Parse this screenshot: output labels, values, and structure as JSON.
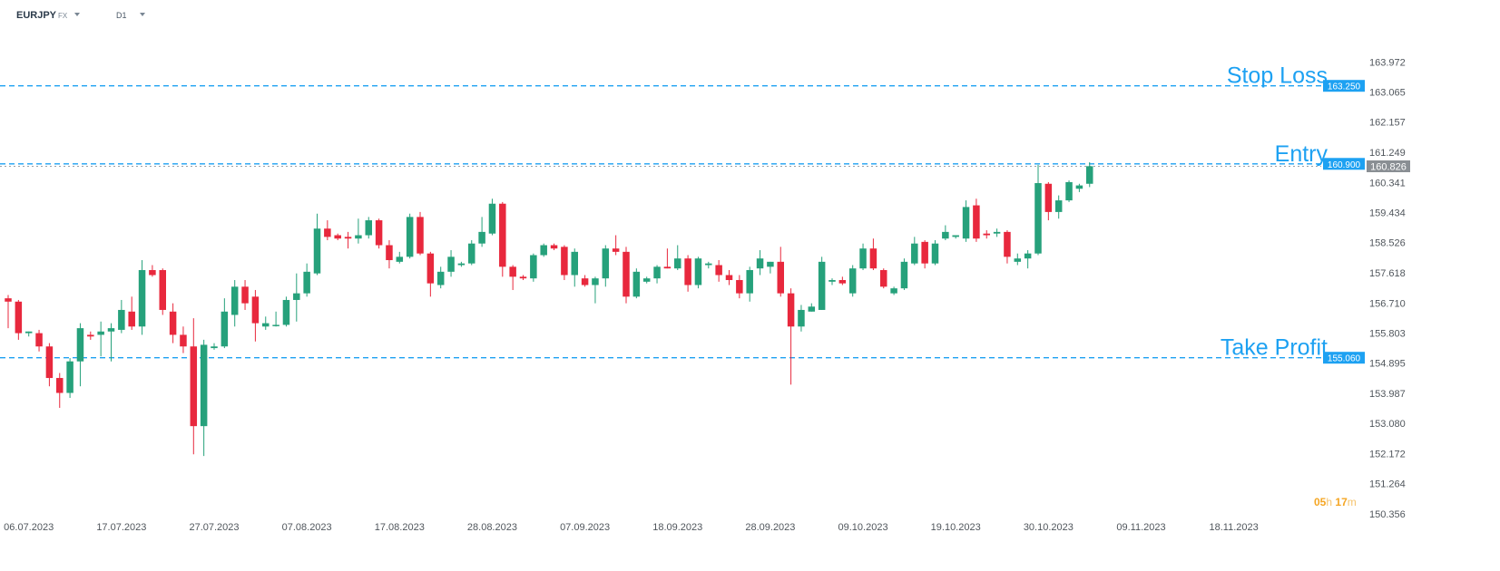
{
  "header": {
    "symbol": "EURJPY",
    "symbol_type": "FX",
    "timeframe": "D1"
  },
  "countdown": {
    "hours": "05",
    "hours_unit": "h",
    "minutes": "17",
    "minutes_unit": "m"
  },
  "colors": {
    "up": "#26a17b",
    "down": "#e8283d",
    "level_line": "#1da1f2",
    "level_text": "#1da1f2",
    "last_price_bg": "#8a8f94",
    "axis_text": "#50565c"
  },
  "chart_data": {
    "type": "candlestick",
    "symbol": "EURJPY",
    "timeframe": "D1",
    "ylim": [
      150.356,
      164.88
    ],
    "y_ticks": [
      "163.972",
      "163.065",
      "162.157",
      "161.249",
      "160.341",
      "159.434",
      "158.526",
      "157.618",
      "156.710",
      "155.803",
      "154.895",
      "153.987",
      "153.080",
      "152.172",
      "151.264",
      "150.356"
    ],
    "x_ticks": [
      {
        "label": "06.07.2023",
        "index": 2
      },
      {
        "label": "17.07.2023",
        "index": 11
      },
      {
        "label": "27.07.2023",
        "index": 20
      },
      {
        "label": "07.08.2023",
        "index": 29
      },
      {
        "label": "17.08.2023",
        "index": 38
      },
      {
        "label": "28.08.2023",
        "index": 47
      },
      {
        "label": "07.09.2023",
        "index": 56
      },
      {
        "label": "18.09.2023",
        "index": 65
      },
      {
        "label": "28.09.2023",
        "index": 74
      },
      {
        "label": "09.10.2023",
        "index": 83
      },
      {
        "label": "19.10.2023",
        "index": 92
      },
      {
        "label": "30.10.2023",
        "index": 101
      },
      {
        "label": "09.11.2023",
        "index": 110
      },
      {
        "label": "18.11.2023",
        "index": 119
      }
    ],
    "levels": [
      {
        "name": "Stop Loss",
        "value": 163.25,
        "label": "163.250"
      },
      {
        "name": "Entry",
        "value": 160.9,
        "label": "160.900"
      },
      {
        "name": "Take Profit",
        "value": 155.06,
        "label": "155.060"
      }
    ],
    "last_price": {
      "value": 160.826,
      "label": "160.826"
    },
    "ohlc": [
      [
        156.85,
        156.95,
        155.95,
        156.75
      ],
      [
        156.75,
        156.8,
        155.6,
        155.8
      ],
      [
        155.8,
        155.85,
        155.7,
        155.85
      ],
      [
        155.8,
        155.9,
        155.25,
        155.4
      ],
      [
        155.4,
        155.5,
        154.2,
        154.45
      ],
      [
        154.45,
        154.6,
        153.55,
        154.0
      ],
      [
        154.0,
        155.05,
        153.85,
        154.95
      ],
      [
        154.95,
        156.1,
        154.2,
        155.95
      ],
      [
        155.75,
        155.85,
        155.6,
        155.7
      ],
      [
        155.75,
        156.15,
        155.1,
        155.85
      ],
      [
        155.85,
        156.1,
        154.95,
        155.95
      ],
      [
        155.9,
        156.8,
        155.8,
        156.5
      ],
      [
        156.45,
        156.9,
        155.9,
        156.0
      ],
      [
        156.0,
        158.0,
        155.75,
        157.7
      ],
      [
        157.7,
        157.85,
        157.5,
        157.55
      ],
      [
        157.7,
        157.75,
        156.35,
        156.5
      ],
      [
        156.45,
        156.7,
        155.5,
        155.75
      ],
      [
        155.75,
        156.0,
        155.2,
        155.4
      ],
      [
        155.4,
        156.25,
        152.15,
        153.0
      ],
      [
        153.0,
        155.6,
        152.1,
        155.45
      ],
      [
        155.35,
        155.5,
        155.3,
        155.4
      ],
      [
        155.4,
        156.85,
        155.35,
        156.45
      ],
      [
        156.35,
        157.4,
        156.0,
        157.2
      ],
      [
        157.2,
        157.4,
        156.5,
        156.7
      ],
      [
        156.9,
        157.1,
        155.55,
        156.1
      ],
      [
        156.0,
        156.3,
        155.9,
        156.1
      ],
      [
        156.05,
        156.45,
        156.0,
        156.05
      ],
      [
        156.05,
        156.9,
        156.0,
        156.8
      ],
      [
        156.8,
        157.6,
        156.15,
        157.0
      ],
      [
        157.0,
        157.9,
        156.9,
        157.65
      ],
      [
        157.6,
        159.4,
        157.55,
        158.95
      ],
      [
        158.95,
        159.2,
        158.6,
        158.7
      ],
      [
        158.75,
        158.8,
        158.6,
        158.65
      ],
      [
        158.7,
        158.85,
        158.35,
        158.65
      ],
      [
        158.65,
        159.25,
        158.5,
        158.75
      ],
      [
        158.75,
        159.3,
        158.65,
        159.2
      ],
      [
        159.2,
        159.25,
        158.35,
        158.45
      ],
      [
        158.45,
        158.6,
        157.75,
        158.0
      ],
      [
        157.95,
        158.25,
        157.9,
        158.1
      ],
      [
        158.1,
        159.4,
        158.05,
        159.3
      ],
      [
        159.3,
        159.45,
        158.15,
        158.2
      ],
      [
        158.2,
        158.25,
        156.9,
        157.3
      ],
      [
        157.25,
        157.8,
        157.15,
        157.65
      ],
      [
        157.65,
        158.3,
        157.5,
        158.1
      ],
      [
        157.85,
        157.95,
        157.8,
        157.9
      ],
      [
        157.9,
        158.6,
        157.85,
        158.5
      ],
      [
        158.5,
        159.3,
        158.4,
        158.85
      ],
      [
        158.8,
        159.85,
        158.75,
        159.7
      ],
      [
        159.7,
        159.75,
        157.5,
        157.8
      ],
      [
        157.8,
        157.85,
        157.1,
        157.5
      ],
      [
        157.5,
        157.55,
        157.4,
        157.45
      ],
      [
        157.45,
        158.2,
        157.35,
        158.15
      ],
      [
        158.15,
        158.5,
        158.1,
        158.45
      ],
      [
        158.45,
        158.5,
        158.3,
        158.35
      ],
      [
        158.4,
        158.45,
        157.4,
        157.55
      ],
      [
        157.55,
        158.35,
        157.2,
        158.25
      ],
      [
        157.45,
        157.55,
        157.2,
        157.25
      ],
      [
        157.25,
        157.5,
        156.7,
        157.45
      ],
      [
        157.45,
        158.45,
        157.2,
        158.35
      ],
      [
        158.35,
        158.75,
        158.15,
        158.25
      ],
      [
        158.25,
        158.4,
        156.7,
        156.9
      ],
      [
        156.9,
        157.75,
        156.85,
        157.65
      ],
      [
        157.35,
        157.5,
        157.3,
        157.45
      ],
      [
        157.45,
        157.85,
        157.3,
        157.8
      ],
      [
        157.8,
        158.35,
        157.75,
        157.75
      ],
      [
        157.75,
        158.45,
        157.7,
        158.05
      ],
      [
        158.05,
        158.15,
        157.05,
        157.25
      ],
      [
        157.25,
        158.1,
        157.15,
        158.05
      ],
      [
        157.85,
        157.95,
        157.75,
        157.9
      ],
      [
        157.85,
        158.0,
        157.35,
        157.55
      ],
      [
        157.55,
        157.7,
        157.25,
        157.4
      ],
      [
        157.4,
        157.55,
        156.85,
        157.0
      ],
      [
        157.0,
        157.8,
        156.75,
        157.7
      ],
      [
        157.75,
        158.3,
        157.55,
        158.05
      ],
      [
        157.8,
        157.95,
        157.6,
        157.95
      ],
      [
        157.95,
        158.4,
        156.9,
        157.0
      ],
      [
        157.0,
        157.15,
        154.25,
        156.0
      ],
      [
        156.0,
        156.65,
        155.85,
        156.5
      ],
      [
        156.45,
        156.7,
        156.45,
        156.6
      ],
      [
        156.5,
        158.1,
        156.5,
        157.95
      ],
      [
        157.35,
        157.45,
        157.25,
        157.4
      ],
      [
        157.4,
        157.5,
        157.25,
        157.3
      ],
      [
        157.0,
        157.85,
        156.9,
        157.75
      ],
      [
        157.75,
        158.5,
        157.7,
        158.35
      ],
      [
        158.35,
        158.65,
        157.7,
        157.75
      ],
      [
        157.7,
        157.75,
        157.15,
        157.2
      ],
      [
        157.0,
        157.2,
        156.95,
        157.15
      ],
      [
        157.15,
        158.05,
        157.1,
        157.95
      ],
      [
        157.9,
        158.7,
        157.85,
        158.5
      ],
      [
        158.55,
        158.6,
        157.75,
        157.9
      ],
      [
        157.9,
        158.6,
        157.85,
        158.5
      ],
      [
        158.65,
        159.05,
        158.6,
        158.85
      ],
      [
        158.7,
        158.75,
        158.65,
        158.75
      ],
      [
        158.65,
        159.8,
        158.55,
        159.6
      ],
      [
        159.65,
        159.85,
        158.55,
        158.65
      ],
      [
        158.8,
        158.9,
        158.65,
        158.75
      ],
      [
        158.8,
        158.95,
        158.7,
        158.85
      ],
      [
        158.85,
        158.9,
        157.9,
        158.1
      ],
      [
        157.95,
        158.2,
        157.85,
        158.05
      ],
      [
        158.05,
        158.3,
        157.75,
        158.2
      ],
      [
        158.2,
        160.87,
        158.15,
        160.32
      ],
      [
        160.3,
        160.35,
        159.2,
        159.45
      ],
      [
        159.45,
        159.95,
        159.25,
        159.8
      ],
      [
        159.8,
        160.4,
        159.75,
        160.35
      ],
      [
        160.15,
        160.3,
        160.05,
        160.25
      ],
      [
        160.3,
        160.95,
        160.2,
        160.83
      ]
    ]
  }
}
